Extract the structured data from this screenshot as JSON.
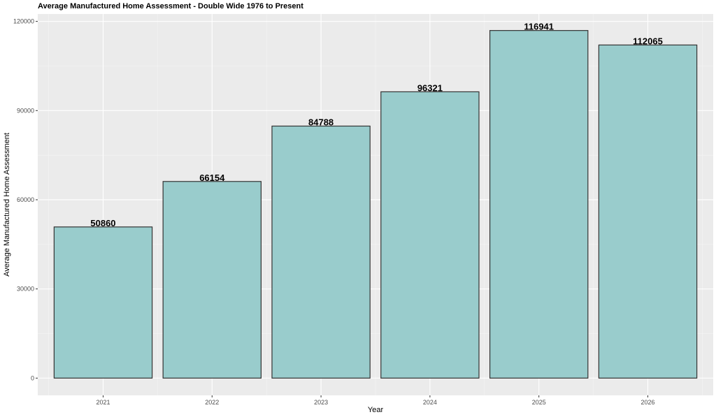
{
  "chart_data": {
    "type": "bar",
    "title": "Average Manufactured Home Assessment - Double Wide 1976 to Present",
    "xlabel": "Year",
    "ylabel": "Average Manufactured Home Assessment",
    "categories": [
      "2021",
      "2022",
      "2023",
      "2024",
      "2025",
      "2026"
    ],
    "values": [
      50860,
      66154,
      84788,
      96321,
      116941,
      112065
    ],
    "data_labels": [
      "50860",
      "66154",
      "84788",
      "96321",
      "116941",
      "112065"
    ],
    "ylim": [
      -5800,
      122500
    ],
    "yticks": [
      0,
      30000,
      60000,
      90000,
      120000
    ],
    "ytick_labels": [
      "0",
      "30000",
      "60000",
      "90000",
      "120000"
    ],
    "grid": true,
    "legend": "none",
    "colors": {
      "bar_fill": "#99cccc",
      "bar_stroke": "#333333",
      "panel_background": "#ebebeb",
      "grid_major": "#ffffff",
      "grid_minor": "#f5f5f5"
    }
  }
}
